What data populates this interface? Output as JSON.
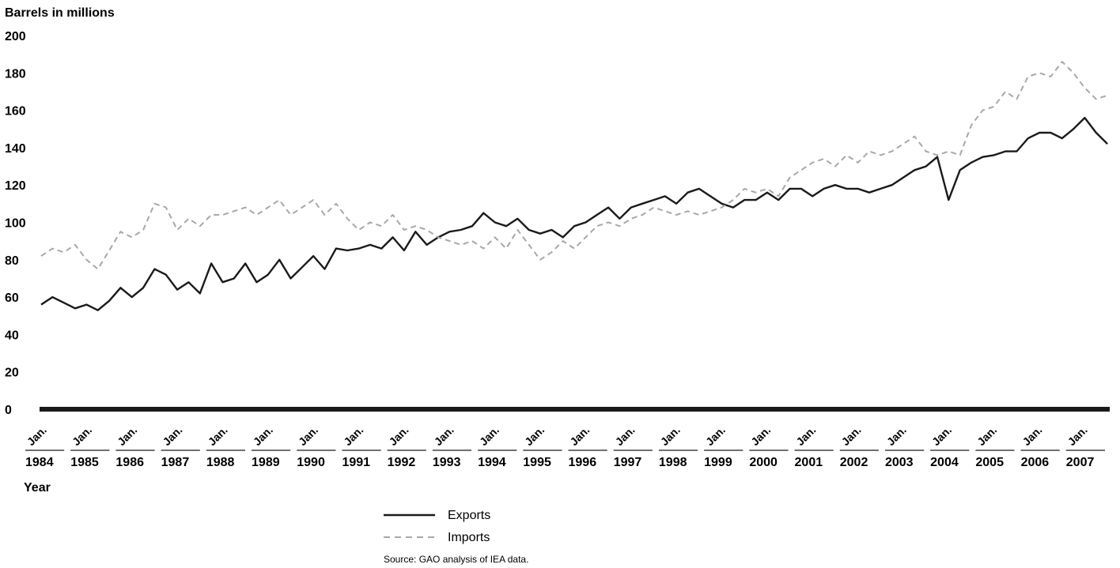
{
  "chart_data": {
    "type": "line",
    "title": "",
    "ylabel": "Barrels in millions",
    "xlabel": "Year",
    "ylim": [
      0,
      200
    ],
    "yticks": [
      0,
      20,
      40,
      60,
      80,
      100,
      120,
      140,
      160,
      180,
      200
    ],
    "xlim": [
      1984.0,
      2007.55
    ],
    "month_label": "Jan.",
    "x_tick_years": [
      "1984",
      "1985",
      "1986",
      "1987",
      "1988",
      "1989",
      "1990",
      "1991",
      "1992",
      "1993",
      "1994",
      "1995",
      "1996",
      "1997",
      "1998",
      "1999",
      "2000",
      "2001",
      "2002",
      "2003",
      "2004",
      "2005",
      "2006",
      "2007"
    ],
    "grid": false,
    "legend_position": "bottom-center",
    "series": [
      {
        "name": "Exports",
        "style": "solid",
        "color": "#1a1a1a",
        "x": [
          1984.0,
          1984.25,
          1984.5,
          1984.75,
          1985.0,
          1985.25,
          1985.5,
          1985.75,
          1986.0,
          1986.25,
          1986.5,
          1986.75,
          1987.0,
          1987.25,
          1987.5,
          1987.75,
          1988.0,
          1988.25,
          1988.5,
          1988.75,
          1989.0,
          1989.25,
          1989.5,
          1989.75,
          1990.0,
          1990.25,
          1990.5,
          1990.75,
          1991.0,
          1991.25,
          1991.5,
          1991.75,
          1992.0,
          1992.25,
          1992.5,
          1992.75,
          1993.0,
          1993.25,
          1993.5,
          1993.75,
          1994.0,
          1994.25,
          1994.5,
          1994.75,
          1995.0,
          1995.25,
          1995.5,
          1995.75,
          1996.0,
          1996.25,
          1996.5,
          1996.75,
          1997.0,
          1997.25,
          1997.5,
          1997.75,
          1998.0,
          1998.25,
          1998.5,
          1998.75,
          1999.0,
          1999.25,
          1999.5,
          1999.75,
          2000.0,
          2000.25,
          2000.5,
          2000.75,
          2001.0,
          2001.25,
          2001.5,
          2001.75,
          2002.0,
          2002.25,
          2002.5,
          2002.75,
          2003.0,
          2003.25,
          2003.5,
          2003.75,
          2004.0,
          2004.25,
          2004.5,
          2004.75,
          2005.0,
          2005.25,
          2005.5,
          2005.75,
          2006.0,
          2006.25,
          2006.5,
          2006.75,
          2007.0,
          2007.25,
          2007.5
        ],
        "values": [
          56,
          60,
          57,
          54,
          56,
          53,
          58,
          65,
          60,
          65,
          75,
          72,
          64,
          68,
          62,
          78,
          68,
          70,
          78,
          68,
          72,
          80,
          70,
          76,
          82,
          75,
          86,
          85,
          86,
          88,
          86,
          92,
          85,
          95,
          88,
          92,
          95,
          96,
          98,
          105,
          100,
          98,
          102,
          96,
          94,
          96,
          92,
          98,
          100,
          104,
          108,
          102,
          108,
          110,
          112,
          114,
          110,
          116,
          118,
          114,
          110,
          108,
          112,
          112,
          116,
          112,
          118,
          118,
          114,
          118,
          120,
          118,
          118,
          116,
          118,
          120,
          124,
          128,
          130,
          135,
          112,
          128,
          132,
          135,
          136,
          138,
          138,
          145,
          148,
          148,
          145,
          150,
          156,
          148,
          142
        ]
      },
      {
        "name": "Imports",
        "style": "dashed",
        "color": "#a8a8a8",
        "x": [
          1984.0,
          1984.25,
          1984.5,
          1984.75,
          1985.0,
          1985.25,
          1985.5,
          1985.75,
          1986.0,
          1986.25,
          1986.5,
          1986.75,
          1987.0,
          1987.25,
          1987.5,
          1987.75,
          1988.0,
          1988.25,
          1988.5,
          1988.75,
          1989.0,
          1989.25,
          1989.5,
          1989.75,
          1990.0,
          1990.25,
          1990.5,
          1990.75,
          1991.0,
          1991.25,
          1991.5,
          1991.75,
          1992.0,
          1992.25,
          1992.5,
          1992.75,
          1993.0,
          1993.25,
          1993.5,
          1993.75,
          1994.0,
          1994.25,
          1994.5,
          1994.75,
          1995.0,
          1995.25,
          1995.5,
          1995.75,
          1996.0,
          1996.25,
          1996.5,
          1996.75,
          1997.0,
          1997.25,
          1997.5,
          1997.75,
          1998.0,
          1998.25,
          1998.5,
          1998.75,
          1999.0,
          1999.25,
          1999.5,
          1999.75,
          2000.0,
          2000.25,
          2000.5,
          2000.75,
          2001.0,
          2001.25,
          2001.5,
          2001.75,
          2002.0,
          2002.25,
          2002.5,
          2002.75,
          2003.0,
          2003.25,
          2003.5,
          2003.75,
          2004.0,
          2004.25,
          2004.5,
          2004.75,
          2005.0,
          2005.25,
          2005.5,
          2005.75,
          2006.0,
          2006.25,
          2006.5,
          2006.75,
          2007.0,
          2007.25,
          2007.5
        ],
        "values": [
          82,
          86,
          84,
          88,
          80,
          75,
          85,
          95,
          92,
          96,
          110,
          108,
          96,
          102,
          98,
          104,
          104,
          106,
          108,
          104,
          108,
          112,
          104,
          108,
          112,
          104,
          110,
          102,
          96,
          100,
          98,
          104,
          96,
          98,
          96,
          92,
          90,
          88,
          90,
          86,
          92,
          86,
          96,
          88,
          80,
          84,
          90,
          86,
          92,
          98,
          100,
          98,
          102,
          104,
          108,
          106,
          104,
          106,
          104,
          106,
          108,
          112,
          118,
          116,
          118,
          114,
          124,
          128,
          132,
          134,
          130,
          136,
          132,
          138,
          136,
          138,
          142,
          146,
          138,
          136,
          138,
          136,
          152,
          160,
          162,
          170,
          166,
          178,
          180,
          178,
          186,
          180,
          172,
          166,
          168
        ]
      }
    ]
  },
  "source": "Source: GAO analysis of IEA data."
}
